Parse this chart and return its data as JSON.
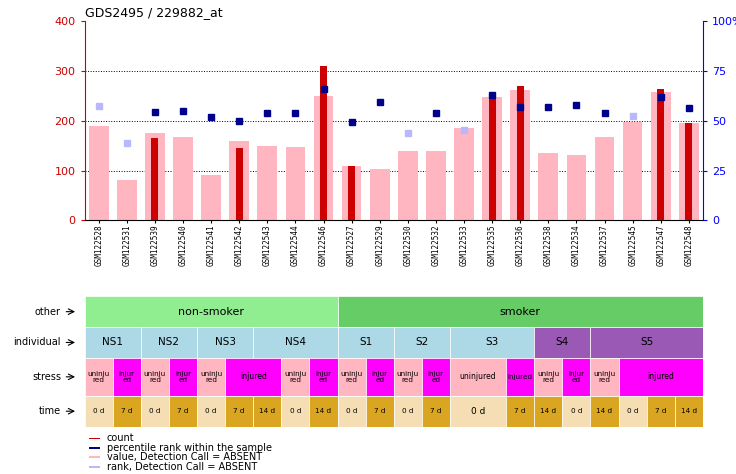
{
  "title": "GDS2495 / 229882_at",
  "samples": [
    "GSM122528",
    "GSM122531",
    "GSM122539",
    "GSM122540",
    "GSM122541",
    "GSM122542",
    "GSM122543",
    "GSM122544",
    "GSM122546",
    "GSM122527",
    "GSM122529",
    "GSM122530",
    "GSM122532",
    "GSM122533",
    "GSM122535",
    "GSM122536",
    "GSM122538",
    "GSM122534",
    "GSM122537",
    "GSM122545",
    "GSM122547",
    "GSM122548"
  ],
  "count_values": [
    0,
    0,
    165,
    0,
    0,
    145,
    0,
    0,
    310,
    110,
    0,
    0,
    0,
    0,
    250,
    270,
    0,
    0,
    0,
    0,
    265,
    195
  ],
  "pink_values": [
    190,
    82,
    175,
    168,
    91,
    160,
    150,
    148,
    250,
    110,
    103,
    140,
    140,
    185,
    248,
    262,
    135,
    132,
    168,
    198,
    258,
    195
  ],
  "blue_sq_values": [
    230,
    155,
    218,
    220,
    207,
    200,
    215,
    215,
    265,
    197,
    237,
    175,
    215,
    182,
    252,
    228,
    228,
    232,
    215,
    210,
    248,
    225
  ],
  "blue_sq_absent": [
    true,
    true,
    false,
    false,
    false,
    false,
    false,
    false,
    false,
    false,
    false,
    true,
    false,
    true,
    false,
    false,
    false,
    false,
    false,
    true,
    false,
    false
  ],
  "pink_absent": [
    true,
    true,
    false,
    false,
    true,
    false,
    false,
    false,
    false,
    false,
    true,
    false,
    false,
    false,
    false,
    false,
    true,
    true,
    false,
    false,
    false,
    false
  ],
  "bar_color_dark_red": "#CC0000",
  "bar_color_pink": "#FFB6C1",
  "dot_color_blue": "#00008B",
  "dot_color_light_blue": "#B8B8FF",
  "bg_color": "#FFFFFF",
  "axis_label_left_color": "#CC0000",
  "axis_label_right_color": "#0000FF",
  "other_row": [
    {
      "label": "non-smoker",
      "span": [
        0,
        9
      ],
      "color": "#90EE90"
    },
    {
      "label": "smoker",
      "span": [
        9,
        22
      ],
      "color": "#66CC66"
    }
  ],
  "individual_row": [
    {
      "label": "NS1",
      "span": [
        0,
        2
      ],
      "color": "#ADD8E6"
    },
    {
      "label": "NS2",
      "span": [
        2,
        4
      ],
      "color": "#ADD8E6"
    },
    {
      "label": "NS3",
      "span": [
        4,
        6
      ],
      "color": "#ADD8E6"
    },
    {
      "label": "NS4",
      "span": [
        6,
        9
      ],
      "color": "#ADD8E6"
    },
    {
      "label": "S1",
      "span": [
        9,
        11
      ],
      "color": "#ADD8E6"
    },
    {
      "label": "S2",
      "span": [
        11,
        13
      ],
      "color": "#ADD8E6"
    },
    {
      "label": "S3",
      "span": [
        13,
        16
      ],
      "color": "#ADD8E6"
    },
    {
      "label": "S4",
      "span": [
        16,
        18
      ],
      "color": "#9B59B6"
    },
    {
      "label": "S5",
      "span": [
        18,
        22
      ],
      "color": "#9B59B6"
    }
  ],
  "stress_cells": [
    {
      "label": "uninju\nred",
      "span": [
        0,
        1
      ],
      "color": "#FFB6C1"
    },
    {
      "label": "injur\ned",
      "span": [
        1,
        2
      ],
      "color": "#FF00FF"
    },
    {
      "label": "uninju\nred",
      "span": [
        2,
        3
      ],
      "color": "#FFB6C1"
    },
    {
      "label": "injur\ned",
      "span": [
        3,
        4
      ],
      "color": "#FF00FF"
    },
    {
      "label": "uninju\nred",
      "span": [
        4,
        5
      ],
      "color": "#FFB6C1"
    },
    {
      "label": "injured",
      "span": [
        5,
        7
      ],
      "color": "#FF00FF"
    },
    {
      "label": "uninju\nred",
      "span": [
        7,
        8
      ],
      "color": "#FFB6C1"
    },
    {
      "label": "injur\ned",
      "span": [
        8,
        9
      ],
      "color": "#FF00FF"
    },
    {
      "label": "uninju\nred",
      "span": [
        9,
        10
      ],
      "color": "#FFB6C1"
    },
    {
      "label": "injur\ned",
      "span": [
        10,
        11
      ],
      "color": "#FF00FF"
    },
    {
      "label": "uninju\nred",
      "span": [
        11,
        12
      ],
      "color": "#FFB6C1"
    },
    {
      "label": "injur\ned",
      "span": [
        12,
        13
      ],
      "color": "#FF00FF"
    },
    {
      "label": "uninjured",
      "span": [
        13,
        15
      ],
      "color": "#FFB6C1"
    },
    {
      "label": "injured",
      "span": [
        15,
        16
      ],
      "color": "#FF00FF"
    },
    {
      "label": "uninju\nred",
      "span": [
        16,
        17
      ],
      "color": "#FFB6C1"
    },
    {
      "label": "injur\ned",
      "span": [
        17,
        18
      ],
      "color": "#FF00FF"
    },
    {
      "label": "uninju\nred",
      "span": [
        18,
        19
      ],
      "color": "#FFB6C1"
    },
    {
      "label": "injured",
      "span": [
        19,
        22
      ],
      "color": "#FF00FF"
    }
  ],
  "time_cells": [
    {
      "label": "0 d",
      "span": [
        0,
        1
      ],
      "color": "#F5DEB3"
    },
    {
      "label": "7 d",
      "span": [
        1,
        2
      ],
      "color": "#DAA520"
    },
    {
      "label": "0 d",
      "span": [
        2,
        3
      ],
      "color": "#F5DEB3"
    },
    {
      "label": "7 d",
      "span": [
        3,
        4
      ],
      "color": "#DAA520"
    },
    {
      "label": "0 d",
      "span": [
        4,
        5
      ],
      "color": "#F5DEB3"
    },
    {
      "label": "7 d",
      "span": [
        5,
        6
      ],
      "color": "#DAA520"
    },
    {
      "label": "14 d",
      "span": [
        6,
        7
      ],
      "color": "#DAA520"
    },
    {
      "label": "0 d",
      "span": [
        7,
        8
      ],
      "color": "#F5DEB3"
    },
    {
      "label": "14 d",
      "span": [
        8,
        9
      ],
      "color": "#DAA520"
    },
    {
      "label": "0 d",
      "span": [
        9,
        10
      ],
      "color": "#F5DEB3"
    },
    {
      "label": "7 d",
      "span": [
        10,
        11
      ],
      "color": "#DAA520"
    },
    {
      "label": "0 d",
      "span": [
        11,
        12
      ],
      "color": "#F5DEB3"
    },
    {
      "label": "7 d",
      "span": [
        12,
        13
      ],
      "color": "#DAA520"
    },
    {
      "label": "0 d",
      "span": [
        13,
        15
      ],
      "color": "#F5DEB3"
    },
    {
      "label": "7 d",
      "span": [
        15,
        16
      ],
      "color": "#DAA520"
    },
    {
      "label": "14 d",
      "span": [
        16,
        17
      ],
      "color": "#DAA520"
    },
    {
      "label": "0 d",
      "span": [
        17,
        18
      ],
      "color": "#F5DEB3"
    },
    {
      "label": "14 d",
      "span": [
        18,
        19
      ],
      "color": "#DAA520"
    },
    {
      "label": "0 d",
      "span": [
        19,
        20
      ],
      "color": "#F5DEB3"
    },
    {
      "label": "7 d",
      "span": [
        20,
        21
      ],
      "color": "#DAA520"
    },
    {
      "label": "14 d",
      "span": [
        21,
        22
      ],
      "color": "#DAA520"
    }
  ],
  "legend_items": [
    {
      "label": "count",
      "color": "#CC0000"
    },
    {
      "label": "percentile rank within the sample",
      "color": "#00008B"
    },
    {
      "label": "value, Detection Call = ABSENT",
      "color": "#FFB6C1"
    },
    {
      "label": "rank, Detection Call = ABSENT",
      "color": "#B8B8FF"
    }
  ]
}
